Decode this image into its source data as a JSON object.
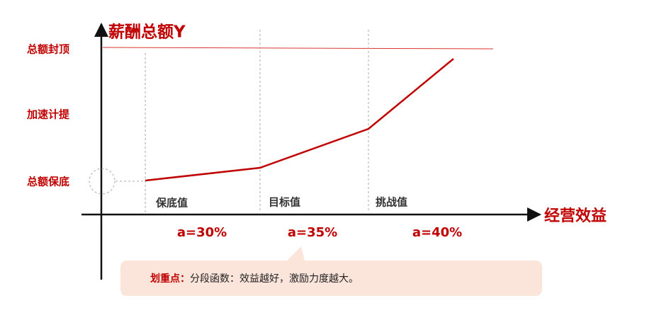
{
  "title": "薪酬总额Y",
  "x_axis_label": "经营效益",
  "y_levels": [
    "总额封顶",
    "加速计提",
    "总额保底"
  ],
  "segments": [
    {
      "label": "保底值",
      "rate": "a=30%"
    },
    {
      "label": "目标值",
      "rate": "a=35%"
    },
    {
      "label": "挑战值",
      "rate": "a=40%"
    }
  ],
  "note": {
    "emphasis": "划重点：",
    "text": "分段函数：效益越好，激励力度越大。"
  }
}
